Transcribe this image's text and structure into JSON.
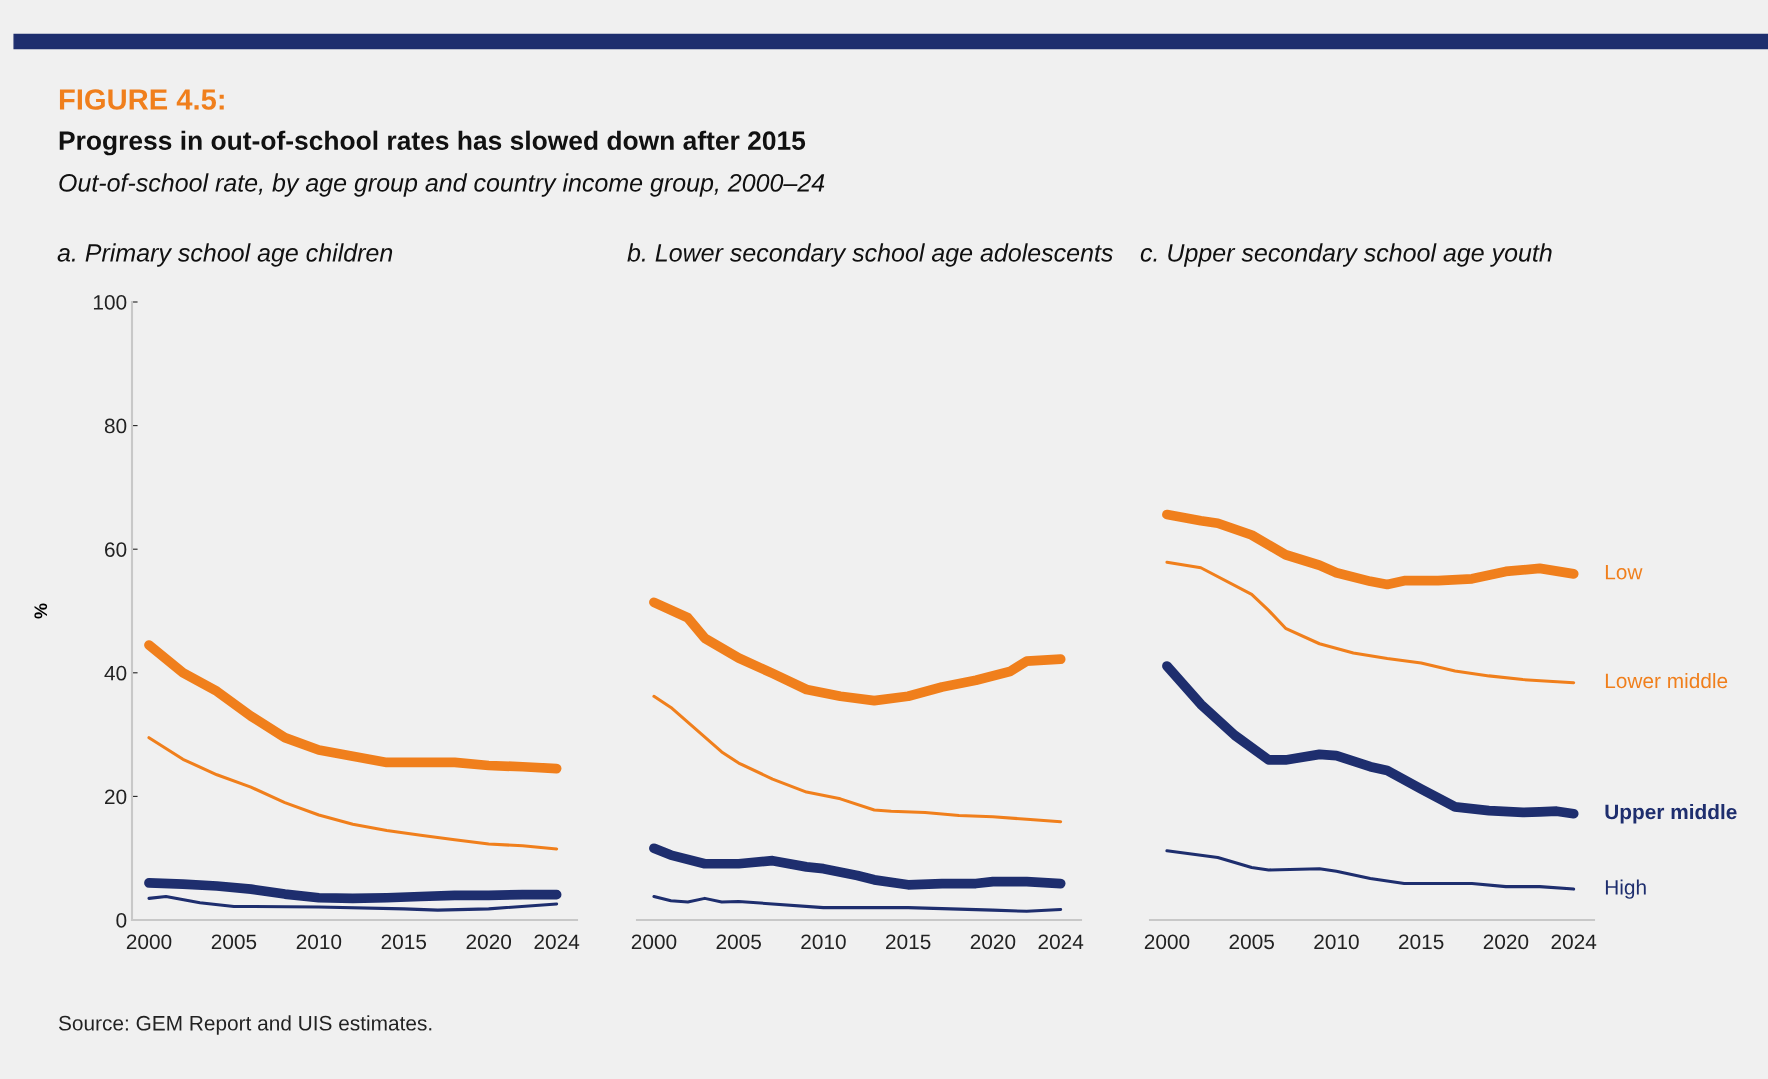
{
  "chart_data": [
    {
      "type": "line",
      "title": "a. Primary school age children",
      "ylabel": "%",
      "xlim": [
        1999,
        2025.2
      ],
      "ylim": [
        0,
        100
      ],
      "xticks": [
        2000,
        2005,
        2010,
        2015,
        2020,
        2024
      ],
      "yticks": [
        0,
        20,
        40,
        60,
        80,
        100
      ],
      "grid": false,
      "legend": false,
      "marker": "none",
      "line_style": "solid",
      "annotations": [
        "FIGURE 4.5:",
        "Progress in out-of-school rates has slowed down after 2015",
        "Out-of-school rate, by age group and country income group, 2000–24",
        "Source: GEM Report and UIS estimates."
      ],
      "series": [
        {
          "color": "#f07f1c",
          "x": [
            2000,
            2002,
            2004,
            2006,
            2008,
            2010,
            2012,
            2014,
            2016,
            2018,
            2020,
            2022,
            2024
          ],
          "values": [
            44.5,
            40,
            37,
            33,
            29.5,
            27.5,
            26.5,
            25.5,
            25.5,
            25.5,
            25,
            24.8,
            24.5
          ]
        },
        {
          "color": "#f07f1c",
          "x": [
            2000,
            2002,
            2004,
            2006,
            2008,
            2010,
            2012,
            2014,
            2016,
            2018,
            2020,
            2022,
            2024
          ],
          "values": [
            29.5,
            26,
            23.5,
            21.5,
            19,
            17,
            15.5,
            14.5,
            13.7,
            13,
            12.3,
            12,
            11.5
          ]
        },
        {
          "color": "#1e2e6e",
          "x": [
            2000,
            2002,
            2004,
            2006,
            2008,
            2010,
            2012,
            2014,
            2016,
            2018,
            2020,
            2022,
            2024
          ],
          "values": [
            6,
            5.8,
            5.5,
            5,
            4.2,
            3.6,
            3.5,
            3.6,
            3.8,
            4,
            4,
            4.1,
            4.1
          ]
        },
        {
          "color": "#1e2e6e",
          "x": [
            2000,
            2001,
            2003,
            2005,
            2010,
            2015,
            2017,
            2020,
            2024
          ],
          "values": [
            3.5,
            3.8,
            2.8,
            2.2,
            2.1,
            1.8,
            1.6,
            1.8,
            2.6
          ]
        }
      ]
    },
    {
      "type": "line",
      "title": "b. Lower secondary school age adolescents",
      "xlim": [
        1999,
        2025.2
      ],
      "ylim": [
        0,
        100
      ],
      "xticks": [
        2000,
        2005,
        2010,
        2015,
        2020,
        2024
      ],
      "yticks": [
        0,
        20,
        40,
        60,
        80,
        100
      ],
      "tick_labels": "x",
      "grid": false,
      "legend": false,
      "marker": "none",
      "line_style": "solid",
      "series": [
        {
          "color": "#f07f1c",
          "x": [
            2000,
            2002,
            2003,
            2005,
            2007,
            2009,
            2011,
            2013,
            2015,
            2017,
            2019,
            2021,
            2022,
            2024
          ],
          "values": [
            51.4,
            48.9,
            45.6,
            42.4,
            39.9,
            37.3,
            36.2,
            35.5,
            36.2,
            37.7,
            38.8,
            40.2,
            41.9,
            42.2
          ]
        },
        {
          "color": "#f07f1c",
          "x": [
            2000,
            2001,
            2004,
            2005,
            2007,
            2009,
            2011,
            2013,
            2014,
            2016,
            2018,
            2020,
            2022,
            2024
          ],
          "values": [
            36.2,
            34.4,
            27.2,
            25.4,
            22.8,
            20.7,
            19.6,
            17.8,
            17.6,
            17.4,
            16.9,
            16.7,
            16.3,
            15.9
          ]
        },
        {
          "color": "#1e2e6e",
          "x": [
            2000,
            2001,
            2003,
            2005,
            2007,
            2009,
            2010,
            2012,
            2013,
            2015,
            2017,
            2019,
            2020,
            2022,
            2024
          ],
          "values": [
            11.6,
            10.5,
            9.1,
            9.1,
            9.6,
            8.6,
            8.3,
            7.2,
            6.5,
            5.7,
            5.9,
            5.9,
            6.2,
            6.2,
            5.9
          ]
        },
        {
          "color": "#1e2e6e",
          "x": [
            2000,
            2001,
            2002,
            2003,
            2004,
            2005,
            2010,
            2015,
            2020,
            2022,
            2024
          ],
          "values": [
            3.8,
            3.1,
            2.9,
            3.5,
            2.9,
            3.0,
            2.0,
            2.0,
            1.6,
            1.4,
            1.7
          ]
        }
      ]
    },
    {
      "type": "line",
      "title": "c. Upper secondary school age youth",
      "xlim": [
        1999,
        2025.2
      ],
      "ylim": [
        0,
        100
      ],
      "xticks": [
        2000,
        2005,
        2010,
        2015,
        2020,
        2024
      ],
      "yticks": [
        0,
        20,
        40,
        60,
        80,
        100
      ],
      "tick_labels": "x",
      "grid": false,
      "legend": false,
      "marker": "none",
      "line_style": "solid",
      "series": [
        {
          "name": "Low",
          "color": "#f07f1c",
          "x": [
            2000,
            2002,
            2003,
            2005,
            2007,
            2009,
            2010,
            2012,
            2013,
            2014,
            2016,
            2018,
            2020,
            2022,
            2024
          ],
          "values": [
            65.6,
            64.6,
            64.2,
            62.3,
            59.1,
            57.4,
            56.2,
            54.8,
            54.3,
            54.9,
            54.9,
            55.2,
            56.4,
            56.9,
            56.0
          ]
        },
        {
          "name": "Lower middle",
          "color": "#f07f1c",
          "x": [
            2000,
            2002,
            2005,
            2006,
            2007,
            2009,
            2011,
            2013,
            2015,
            2017,
            2019,
            2021,
            2024
          ],
          "values": [
            57.9,
            57.0,
            52.7,
            50.1,
            47.2,
            44.7,
            43.2,
            42.3,
            41.6,
            40.3,
            39.5,
            38.9,
            38.4
          ]
        },
        {
          "name": "Upper middle",
          "color": "#1e2e6e",
          "x": [
            2000,
            2002,
            2004,
            2006,
            2007,
            2009,
            2010,
            2012,
            2013,
            2015,
            2017,
            2019,
            2021,
            2022,
            2023,
            2024
          ],
          "values": [
            41.1,
            34.9,
            29.9,
            25.9,
            25.9,
            26.8,
            26.6,
            24.8,
            24.2,
            21.2,
            18.3,
            17.7,
            17.4,
            17.5,
            17.6,
            17.2
          ]
        },
        {
          "name": "High",
          "color": "#1e2e6e",
          "x": [
            2000,
            2003,
            2005,
            2006,
            2009,
            2010,
            2012,
            2014,
            2018,
            2020,
            2022,
            2024
          ],
          "values": [
            11.2,
            10.1,
            8.5,
            8.1,
            8.3,
            7.9,
            6.7,
            5.9,
            5.9,
            5.4,
            5.4,
            5.0
          ]
        }
      ]
    }
  ]
}
